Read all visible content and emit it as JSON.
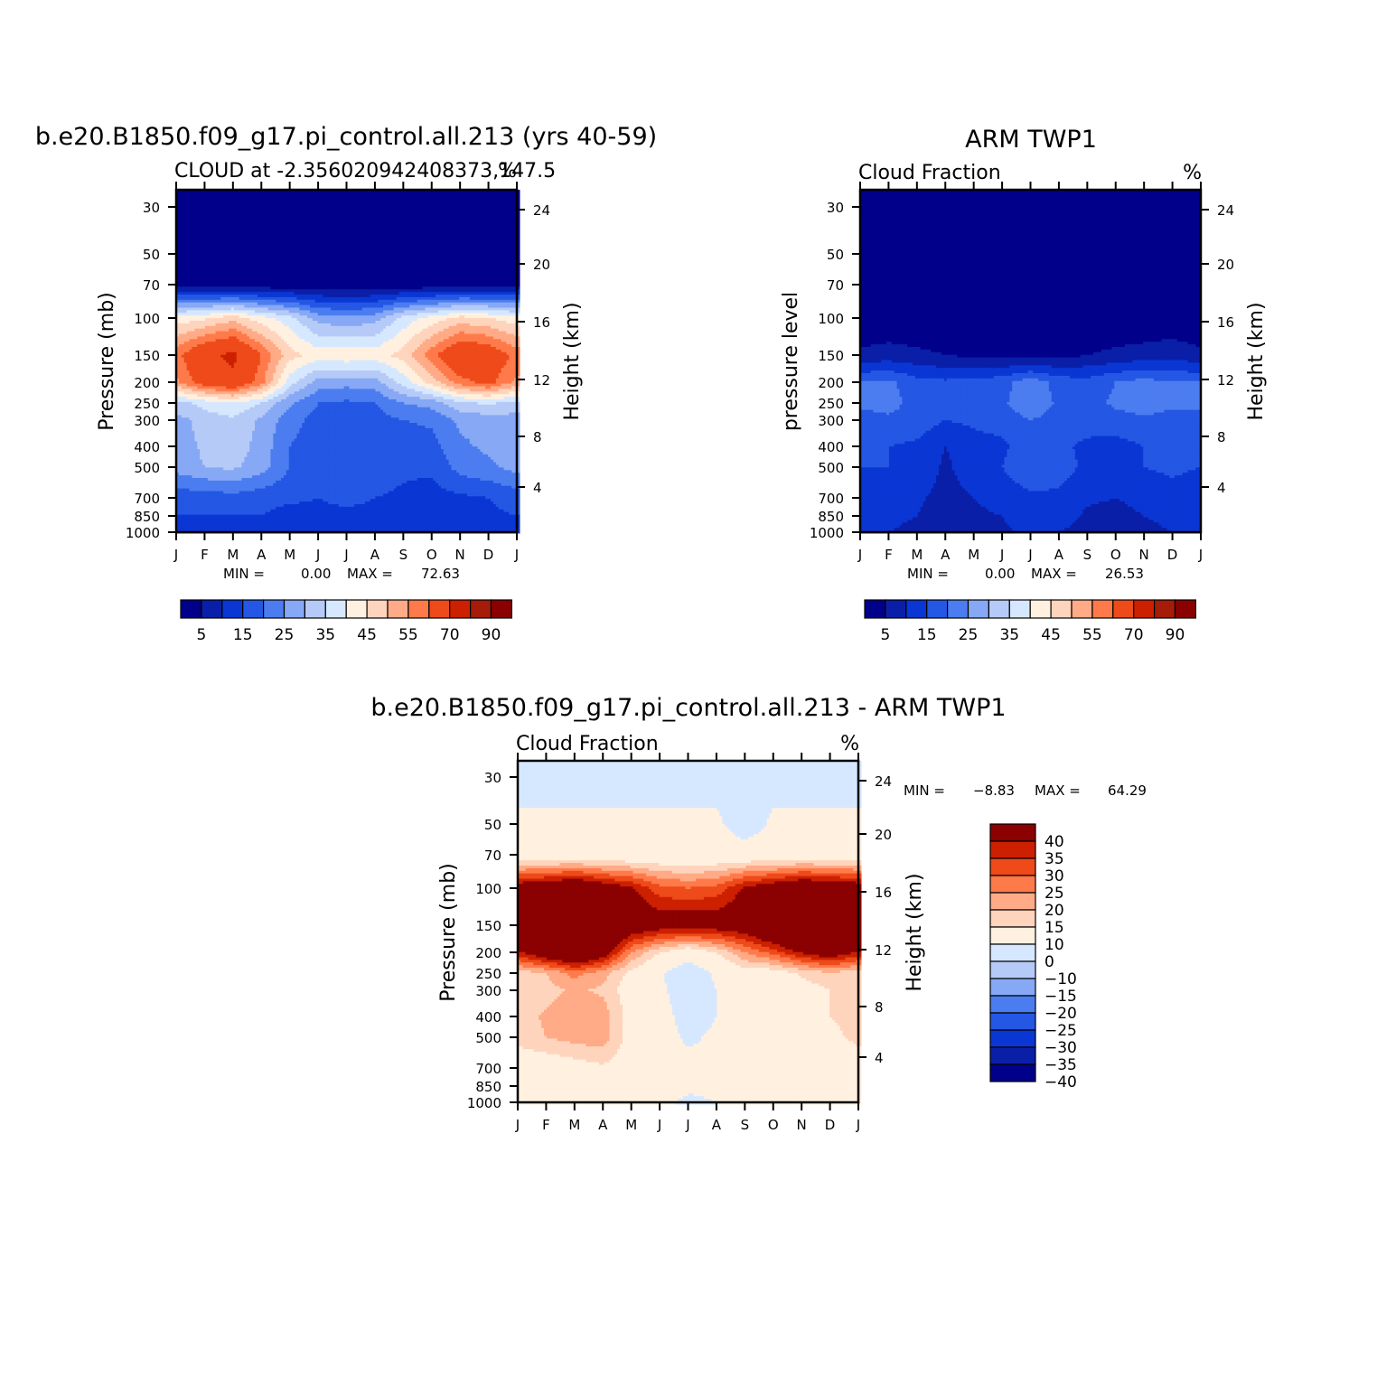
{
  "colors": {
    "model_levels": [
      "#00008b",
      "#0a1fa8",
      "#0a36d4",
      "#2457e3",
      "#4c7df0",
      "#86a8f5",
      "#b6caf8",
      "#d6e8ff",
      "#fff0e0",
      "#ffd4bc",
      "#ffab87",
      "#ff7a4a",
      "#ee4a1a",
      "#cc2000",
      "#a51c08",
      "#8b0000"
    ],
    "diff_levels": [
      "#00008b",
      "#0a1fa8",
      "#0a36d4",
      "#2457e3",
      "#4c7df0",
      "#86a8f5",
      "#b6caf8",
      "#d6e8ff",
      "#fff0e0",
      "#ffd4bc",
      "#ffab87",
      "#ff7a4a",
      "#ee4a1a",
      "#cc2000",
      "#8b0000"
    ]
  },
  "chart_data": [
    {
      "type": "heatmap",
      "id": "model",
      "title": "b.e20.B1850.f09_g17.pi_control.all.213 (yrs 40-59)",
      "subtitle": "CLOUD at -2.356020942408373,147.5",
      "units": "%",
      "ylabel": "Pressure (mb)",
      "ylabel_right": "Height (km)",
      "x_ticks": [
        "J",
        "F",
        "M",
        "A",
        "M",
        "J",
        "J",
        "A",
        "S",
        "O",
        "N",
        "D",
        "J"
      ],
      "y_ticks": [
        30,
        50,
        70,
        100,
        150,
        200,
        250,
        300,
        400,
        500,
        700,
        850,
        1000
      ],
      "y_right_ticks": [
        24,
        20,
        16,
        12,
        8,
        4
      ],
      "min_label": "MIN =",
      "min_value": "0.00",
      "max_label": "MAX =",
      "max_value": "72.63",
      "colorbar_labels": [
        "5",
        "15",
        "25",
        "35",
        "45",
        "55",
        "70",
        "90"
      ],
      "cycle_values": [
        [
          1,
          1,
          1,
          1,
          1,
          1,
          1,
          1,
          1,
          1,
          1,
          1,
          1
        ],
        [
          1,
          1,
          1,
          1,
          1,
          1,
          1,
          1,
          1,
          1,
          1,
          1,
          1
        ],
        [
          3,
          2,
          1,
          1,
          1,
          1,
          1,
          1,
          1,
          1,
          1,
          2,
          3
        ],
        [
          42,
          44,
          48,
          42,
          37,
          28,
          26,
          28,
          37,
          42,
          47,
          45,
          42
        ],
        [
          58,
          68,
          72,
          60,
          47,
          43,
          44,
          43,
          47,
          58,
          68,
          66,
          58
        ],
        [
          54,
          64,
          68,
          57,
          37,
          28,
          27,
          28,
          37,
          47,
          58,
          62,
          54
        ],
        [
          33,
          37,
          40,
          35,
          26,
          20,
          19,
          20,
          25,
          27,
          34,
          36,
          33
        ],
        [
          28,
          32,
          34,
          29,
          22,
          18,
          17,
          18,
          20,
          21,
          26,
          27,
          28
        ],
        [
          27,
          31,
          33,
          28,
          20,
          17,
          15,
          16,
          17,
          18,
          24,
          26,
          27
        ],
        [
          27,
          30,
          31,
          27,
          20,
          18,
          18,
          18,
          16,
          16,
          22,
          24,
          27
        ],
        [
          17,
          17,
          18,
          17,
          16,
          15,
          16,
          15,
          14,
          13,
          14,
          15,
          17
        ],
        [
          15,
          15,
          15,
          15,
          13,
          14,
          14,
          14,
          12,
          12,
          13,
          14,
          15
        ],
        [
          11,
          11,
          11,
          11,
          10,
          10,
          10,
          10,
          10,
          10,
          10,
          11,
          11
        ]
      ]
    },
    {
      "type": "heatmap",
      "id": "obs",
      "title": "ARM TWP1",
      "subtitle": "Cloud Fraction",
      "units": "%",
      "ylabel": "pressure level",
      "ylabel_right": "Height (km)",
      "x_ticks": [
        "J",
        "F",
        "M",
        "A",
        "M",
        "J",
        "J",
        "A",
        "S",
        "O",
        "N",
        "D",
        "J"
      ],
      "y_ticks": [
        30,
        50,
        70,
        100,
        150,
        200,
        250,
        300,
        400,
        500,
        700,
        850,
        1000
      ],
      "y_right_ticks": [
        24,
        20,
        16,
        12,
        8,
        4
      ],
      "min_label": "MIN =",
      "min_value": "0.00",
      "max_label": "MAX =",
      "max_value": "26.53",
      "colorbar_labels": [
        "5",
        "15",
        "25",
        "35",
        "45",
        "55",
        "70",
        "90"
      ],
      "cycle_values": [
        [
          1,
          1,
          1,
          1,
          1,
          1,
          1,
          1,
          1,
          1,
          1,
          1,
          1
        ],
        [
          1,
          1,
          1,
          1,
          1,
          1,
          1,
          1,
          1,
          1,
          1,
          1,
          1
        ],
        [
          1,
          1,
          1,
          1,
          1,
          1,
          1,
          1,
          1,
          1,
          1,
          1,
          1
        ],
        [
          1,
          1,
          1,
          1,
          1,
          1,
          1,
          1,
          1,
          1,
          1,
          1,
          1
        ],
        [
          6,
          7,
          6,
          5,
          4,
          3,
          3,
          3,
          5,
          6,
          7,
          8,
          6
        ],
        [
          20,
          21,
          17,
          16,
          17,
          18,
          23,
          18,
          17,
          20,
          22,
          20,
          20
        ],
        [
          21,
          22,
          18,
          18,
          18,
          19,
          24,
          19,
          18,
          21,
          23,
          22,
          21
        ],
        [
          18,
          19,
          18,
          15,
          16,
          17,
          20,
          18,
          17,
          18,
          19,
          17,
          18
        ],
        [
          15,
          15,
          14,
          10,
          13,
          14,
          18,
          16,
          14,
          13,
          15,
          16,
          15
        ],
        [
          15,
          15,
          14,
          9,
          13,
          15,
          19,
          17,
          14,
          13,
          15,
          16,
          15
        ],
        [
          12,
          12,
          11,
          8,
          10,
          12,
          14,
          14,
          11,
          10,
          12,
          13,
          12
        ],
        [
          11,
          11,
          10,
          7,
          9,
          10,
          13,
          13,
          9,
          8,
          10,
          11,
          11
        ],
        [
          10,
          10,
          9,
          8,
          8,
          9,
          11,
          10,
          8,
          8,
          9,
          10,
          10
        ]
      ]
    },
    {
      "type": "heatmap",
      "id": "diff",
      "title": "b.e20.B1850.f09_g17.pi_control.all.213 - ARM TWP1",
      "subtitle": "Cloud Fraction",
      "units": "%",
      "ylabel": "Pressure (mb)",
      "ylabel_right": "Height (km)",
      "x_ticks": [
        "J",
        "F",
        "M",
        "A",
        "M",
        "J",
        "J",
        "A",
        "S",
        "O",
        "N",
        "D",
        "J"
      ],
      "y_ticks": [
        30,
        50,
        70,
        100,
        150,
        200,
        250,
        300,
        400,
        500,
        700,
        850,
        1000
      ],
      "y_right_ticks": [
        24,
        20,
        16,
        12,
        8,
        4
      ],
      "min_label": "MIN =",
      "min_value": "-8.83",
      "max_label": "MAX =",
      "max_value": "64.29",
      "colorbar_labels": [
        "40",
        "35",
        "30",
        "25",
        "20",
        "15",
        "10",
        "0",
        "-10",
        "-15",
        "-20",
        "-25",
        "-30",
        "-35",
        "-40"
      ],
      "cycle_values": [
        [
          -2,
          -2,
          -2,
          -2,
          -2,
          -2,
          -2,
          -2,
          -2,
          -2,
          -2,
          -2,
          -2
        ],
        [
          1,
          1,
          1,
          1,
          1,
          1,
          1,
          1,
          -3,
          1,
          1,
          1,
          1
        ],
        [
          3,
          3,
          3,
          3,
          3,
          3,
          3,
          3,
          3,
          3,
          3,
          3,
          3
        ],
        [
          41,
          43,
          47,
          41,
          36,
          27,
          25,
          27,
          36,
          41,
          46,
          44,
          41
        ],
        [
          52,
          61,
          66,
          55,
          43,
          40,
          41,
          40,
          42,
          52,
          61,
          58,
          52
        ],
        [
          34,
          43,
          51,
          41,
          20,
          10,
          4,
          10,
          20,
          27,
          36,
          42,
          34
        ],
        [
          12,
          15,
          22,
          17,
          8,
          1,
          -5,
          1,
          7,
          6,
          11,
          14,
          12
        ],
        [
          10,
          13,
          16,
          14,
          6,
          1,
          -3,
          0,
          3,
          3,
          7,
          10,
          10
        ],
        [
          12,
          16,
          19,
          18,
          7,
          3,
          -3,
          0,
          3,
          5,
          9,
          10,
          12
        ],
        [
          12,
          15,
          17,
          18,
          7,
          3,
          -1,
          1,
          2,
          3,
          7,
          8,
          12
        ],
        [
          5,
          5,
          7,
          9,
          6,
          3,
          2,
          1,
          3,
          3,
          2,
          2,
          5
        ],
        [
          4,
          4,
          5,
          8,
          4,
          4,
          1,
          1,
          3,
          4,
          3,
          3,
          4
        ],
        [
          1,
          1,
          2,
          3,
          2,
          1,
          -1,
          0,
          2,
          2,
          1,
          1,
          1
        ]
      ]
    }
  ]
}
